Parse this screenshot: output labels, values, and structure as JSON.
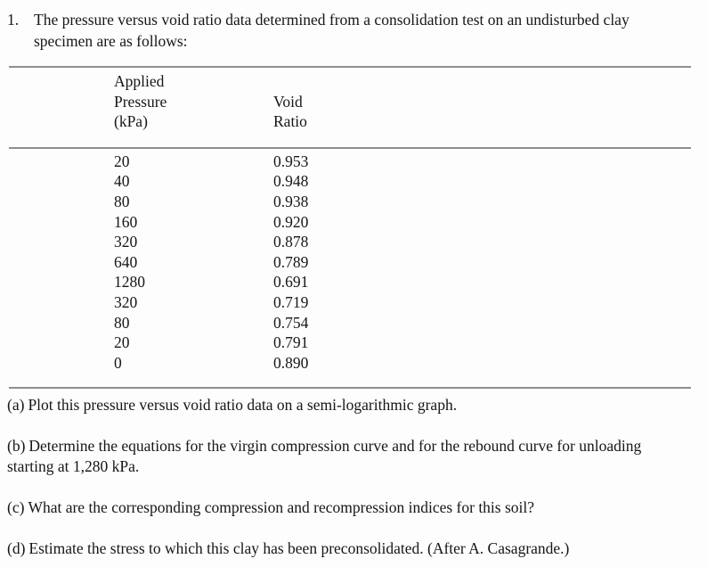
{
  "problem": {
    "number": "1.",
    "text": "The pressure versus void ratio data determined from a consolidation test on an undisturbed clay specimen are as follows:"
  },
  "table": {
    "col1_header_lines": [
      "Applied",
      "Pressure",
      "(kPa)"
    ],
    "col2_header_lines": [
      "Void",
      "Ratio"
    ],
    "rows": [
      {
        "pressure": "20",
        "void_ratio": "0.953"
      },
      {
        "pressure": "40",
        "void_ratio": "0.948"
      },
      {
        "pressure": "80",
        "void_ratio": "0.938"
      },
      {
        "pressure": "160",
        "void_ratio": "0.920"
      },
      {
        "pressure": "320",
        "void_ratio": "0.878"
      },
      {
        "pressure": "640",
        "void_ratio": "0.789"
      },
      {
        "pressure": "1280",
        "void_ratio": "0.691"
      },
      {
        "pressure": "320",
        "void_ratio": "0.719"
      },
      {
        "pressure": "80",
        "void_ratio": "0.754"
      },
      {
        "pressure": "20",
        "void_ratio": "0.791"
      },
      {
        "pressure": "0",
        "void_ratio": "0.890"
      }
    ]
  },
  "questions": [
    {
      "label": "(a)",
      "text": "Plot this pressure versus void ratio data on a semi-logarithmic graph."
    },
    {
      "label": "(b)",
      "text": "Determine the equations for the virgin compression curve and for the rebound curve for unloading starting at 1,280 kPa."
    },
    {
      "label": "(c)",
      "text": "What are the corresponding compression and recompression indices for this soil?"
    },
    {
      "label": "(d)",
      "text": "Estimate the stress to which this clay has been preconsolidated.  (After A. Casagrande.)"
    }
  ],
  "colors": {
    "rule_gray": "#8e8e8e",
    "text": "#161616",
    "background": "#fdfdfd"
  }
}
